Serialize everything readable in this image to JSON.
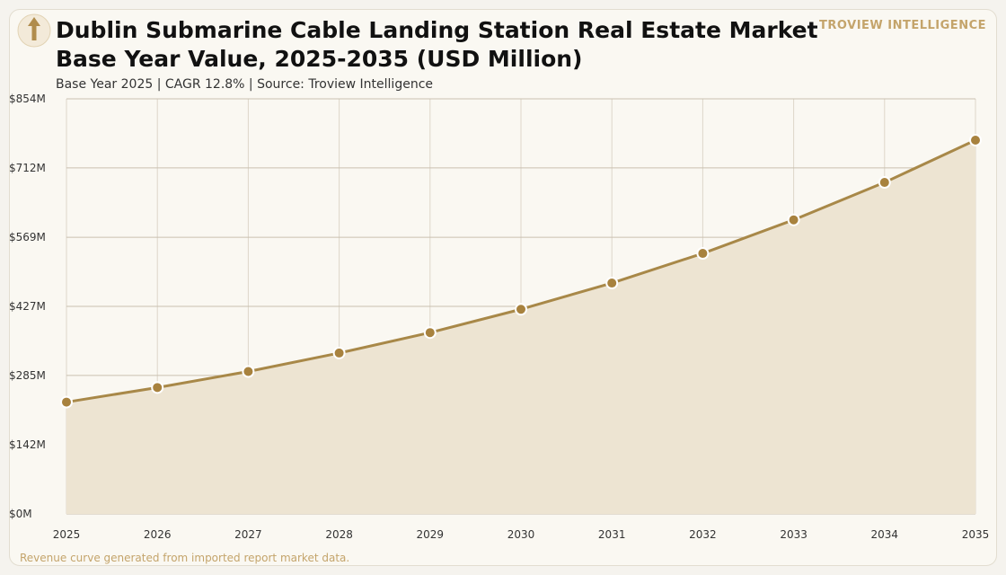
{
  "header": {
    "title_line1": "Dublin Submarine Cable Landing Station Real Estate Market",
    "title_line2": "Base Year Value, 2025-2035 (USD Million)",
    "subtitle": "Base Year 2025 | CAGR 12.8% | Source: Troview Intelligence",
    "brand": "TROVIEW INTELLIGENCE"
  },
  "footer": {
    "note": "Revenue curve generated from imported report market data."
  },
  "colors": {
    "line": "#a88848",
    "marker": "#a8823e",
    "area": "#ede4d2",
    "grid": "#c9c0b0",
    "brand": "#c4a46b"
  },
  "chart_data": {
    "type": "area",
    "x": [
      "2025",
      "2026",
      "2027",
      "2028",
      "2029",
      "2030",
      "2031",
      "2032",
      "2033",
      "2034",
      "2035"
    ],
    "series": [
      {
        "values": [
          230,
          260,
          293,
          331,
          373,
          421,
          475,
          536,
          605,
          682,
          769
        ]
      }
    ],
    "ylim": [
      0,
      854
    ],
    "yticks": [
      0,
      142,
      285,
      427,
      569,
      712,
      854
    ],
    "ytick_labels": [
      "$0M",
      "$142M",
      "$285M",
      "$427M",
      "$569M",
      "$712M",
      "$854M"
    ],
    "grid": true,
    "legend": "none"
  }
}
